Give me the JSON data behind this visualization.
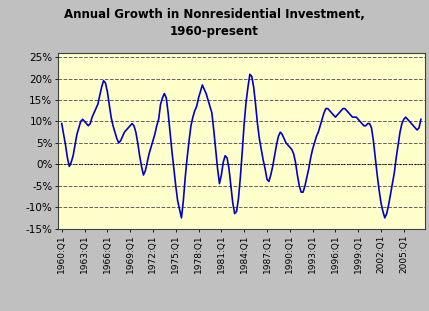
{
  "title": "Annual Growth in Nonresidential Investment,\n1960-present",
  "line_color": "#0000CC",
  "bg_color": "#FFFFCC",
  "outer_bg": "#C0C0C0",
  "grid_color": "#606060",
  "ylim": [
    -15,
    26
  ],
  "yticks": [
    -15,
    -10,
    -5,
    0,
    5,
    10,
    15,
    20,
    25
  ],
  "start_year": 1960,
  "tick_years": [
    1960,
    1963,
    1966,
    1969,
    1972,
    1975,
    1978,
    1981,
    1984,
    1987,
    1990,
    1993,
    1996,
    1999,
    2002,
    2005
  ],
  "values": [
    9.5,
    7.0,
    4.5,
    1.5,
    -0.5,
    0.5,
    2.0,
    4.5,
    7.0,
    8.5,
    10.0,
    10.5,
    10.0,
    9.5,
    9.0,
    9.5,
    11.0,
    12.0,
    13.0,
    14.0,
    16.0,
    18.0,
    19.5,
    19.0,
    17.0,
    14.0,
    11.0,
    9.0,
    7.5,
    6.0,
    5.0,
    5.5,
    6.5,
    7.5,
    8.0,
    8.5,
    9.0,
    9.5,
    9.0,
    7.5,
    5.0,
    2.0,
    -0.5,
    -2.5,
    -1.5,
    0.5,
    2.5,
    4.0,
    5.5,
    7.0,
    9.0,
    10.5,
    14.0,
    15.5,
    16.5,
    15.5,
    12.0,
    7.5,
    3.0,
    -1.0,
    -5.0,
    -8.5,
    -10.5,
    -12.5,
    -8.5,
    -3.0,
    1.5,
    5.5,
    9.0,
    11.0,
    12.5,
    13.5,
    15.5,
    17.0,
    18.5,
    17.5,
    16.5,
    15.0,
    13.5,
    12.0,
    8.0,
    3.5,
    -1.0,
    -4.5,
    -2.5,
    0.5,
    2.0,
    1.5,
    -1.0,
    -5.0,
    -9.0,
    -11.5,
    -11.0,
    -8.0,
    -3.0,
    3.0,
    9.5,
    14.5,
    18.0,
    21.0,
    20.5,
    18.0,
    14.0,
    9.5,
    6.0,
    3.5,
    1.0,
    -1.0,
    -3.5,
    -4.0,
    -2.5,
    -0.5,
    2.0,
    4.5,
    6.5,
    7.5,
    7.0,
    6.0,
    5.0,
    4.5,
    4.0,
    3.5,
    2.5,
    0.5,
    -2.5,
    -5.0,
    -6.5,
    -6.5,
    -5.0,
    -3.0,
    -1.0,
    1.5,
    3.5,
    5.0,
    6.5,
    7.5,
    9.0,
    10.5,
    12.0,
    13.0,
    13.0,
    12.5,
    12.0,
    11.5,
    11.0,
    11.5,
    12.0,
    12.5,
    13.0,
    13.0,
    12.5,
    12.0,
    11.5,
    11.0,
    11.0,
    11.0,
    10.5,
    10.0,
    9.5,
    9.0,
    9.0,
    9.5,
    9.5,
    8.5,
    5.5,
    1.5,
    -2.5,
    -6.0,
    -9.0,
    -11.0,
    -12.5,
    -11.5,
    -9.5,
    -7.0,
    -4.5,
    -2.0,
    1.5,
    4.5,
    7.5,
    9.5,
    10.5,
    11.0,
    10.5,
    10.0,
    9.5,
    9.0,
    8.5,
    8.0,
    8.5,
    10.5
  ]
}
